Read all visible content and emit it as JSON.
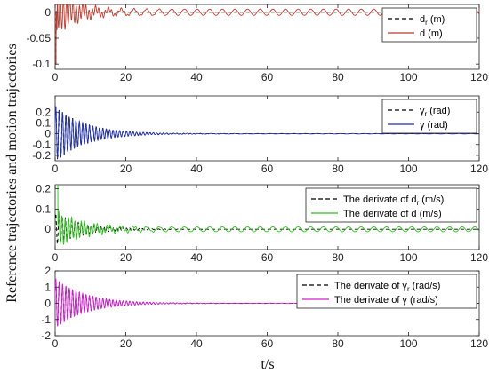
{
  "figure": {
    "ylabel": "Reference trajectories and motion trajectories",
    "xlabel": "t/s"
  },
  "chart_data": [
    {
      "type": "line",
      "xlim": [
        0,
        120
      ],
      "ylim": [
        -0.11,
        0.015
      ],
      "xticks": [
        0,
        20,
        40,
        60,
        80,
        100,
        120
      ],
      "yticks": [
        0,
        -0.05,
        -0.1
      ],
      "ytick_labels": [
        "0",
        "-0.05",
        "-0.1"
      ],
      "grid": false,
      "legend_position": "top-right",
      "series": [
        {
          "key": "dr",
          "name_main": "d",
          "name_sub": "r",
          "name_tail": " (m)",
          "style": "dashed",
          "color": "#000000",
          "model": {
            "type": "step",
            "t0": 0.3,
            "init": -0.1,
            "final": 0.0
          }
        },
        {
          "key": "d",
          "name_main": "d",
          "name_sub": "",
          "name_tail": " (m)",
          "style": "solid",
          "color": "#c0392b",
          "model": {
            "type": "step_osc",
            "t0": 0.3,
            "init": -0.1,
            "final": 0.0,
            "transient_amp": 0.04,
            "decay": 0.15,
            "ss_amp": 0.006,
            "ss_freq": 0.28,
            "tr_freq": 1.1
          }
        }
      ]
    },
    {
      "type": "line",
      "xlim": [
        0,
        120
      ],
      "ylim": [
        -0.25,
        0.35
      ],
      "xticks": [
        0,
        20,
        40,
        60,
        80,
        100,
        120
      ],
      "yticks": [
        0.2,
        0.1,
        0,
        -0.1,
        -0.2
      ],
      "ytick_labels": [
        "0.2",
        "0.1",
        "0",
        "-0.1",
        "-0.2"
      ],
      "grid": false,
      "legend_position": "top-right",
      "series": [
        {
          "key": "gr",
          "name_main": "γ",
          "name_sub": "r",
          "name_tail": " (rad)",
          "style": "dashed",
          "color": "#000000",
          "model": {
            "type": "decay",
            "amp": 0.26,
            "decay": 0.12,
            "freq": 1.05,
            "ss_amp": 0.0,
            "ss_freq": 0.3
          }
        },
        {
          "key": "g",
          "name_main": "γ",
          "name_sub": "",
          "name_tail": " (rad)",
          "style": "solid",
          "color": "#1f2fb0",
          "model": {
            "type": "decay",
            "amp": 0.25,
            "decay": 0.12,
            "freq": 1.05,
            "ss_amp": 0.002,
            "ss_freq": 0.3
          }
        }
      ]
    },
    {
      "type": "line",
      "xlim": [
        0,
        120
      ],
      "ylim": [
        -0.1,
        0.22
      ],
      "xticks": [
        0,
        20,
        40,
        60,
        80,
        100,
        120
      ],
      "yticks": [
        0.2,
        0.1,
        0
      ],
      "ytick_labels": [
        "0.2",
        "0.1",
        "0"
      ],
      "grid": false,
      "legend_position": "top-right",
      "series": [
        {
          "key": "ddr",
          "name_main": "The derivate of d",
          "name_sub": "r",
          "name_tail": " (m/s)",
          "style": "dashed",
          "color": "#000000",
          "model": {
            "type": "decay",
            "amp": 0.08,
            "decay": 0.13,
            "freq": 1.1,
            "ss_amp": 0.0,
            "ss_freq": 0.28
          }
        },
        {
          "key": "dd",
          "name_main": "The derivate of d (m/s)",
          "name_sub": "",
          "name_tail": "",
          "style": "solid",
          "color": "#2fbf1f",
          "model": {
            "type": "spike_decay",
            "amp": 0.08,
            "decay": 0.13,
            "freq": 1.1,
            "ss_amp": 0.012,
            "ss_freq": 0.28,
            "spike": 0.22
          }
        }
      ]
    },
    {
      "type": "line",
      "xlim": [
        0,
        120
      ],
      "ylim": [
        -2,
        2
      ],
      "xticks": [
        0,
        20,
        40,
        60,
        80,
        100,
        120
      ],
      "yticks": [
        2,
        1,
        0,
        -1,
        -2
      ],
      "ytick_labels": [
        "2",
        "1",
        "0",
        "-1",
        "-2"
      ],
      "grid": false,
      "legend_position": "top-right",
      "series": [
        {
          "key": "dgr",
          "name_main": "The derivate of γ",
          "name_sub": "r",
          "name_tail": " (rad/s)",
          "style": "dashed",
          "color": "#000000",
          "model": {
            "type": "decay",
            "amp": 1.5,
            "decay": 0.12,
            "freq": 1.05,
            "ss_amp": 0.0,
            "ss_freq": 0.3
          }
        },
        {
          "key": "dg",
          "name_main": "The derivate of γ",
          "name_sub": "",
          "name_tail": " (rad/s)",
          "style": "solid",
          "color": "#d21fd2",
          "model": {
            "type": "decay",
            "amp": 1.55,
            "decay": 0.12,
            "freq": 1.05,
            "ss_amp": 0.01,
            "ss_freq": 0.3
          }
        }
      ]
    }
  ]
}
